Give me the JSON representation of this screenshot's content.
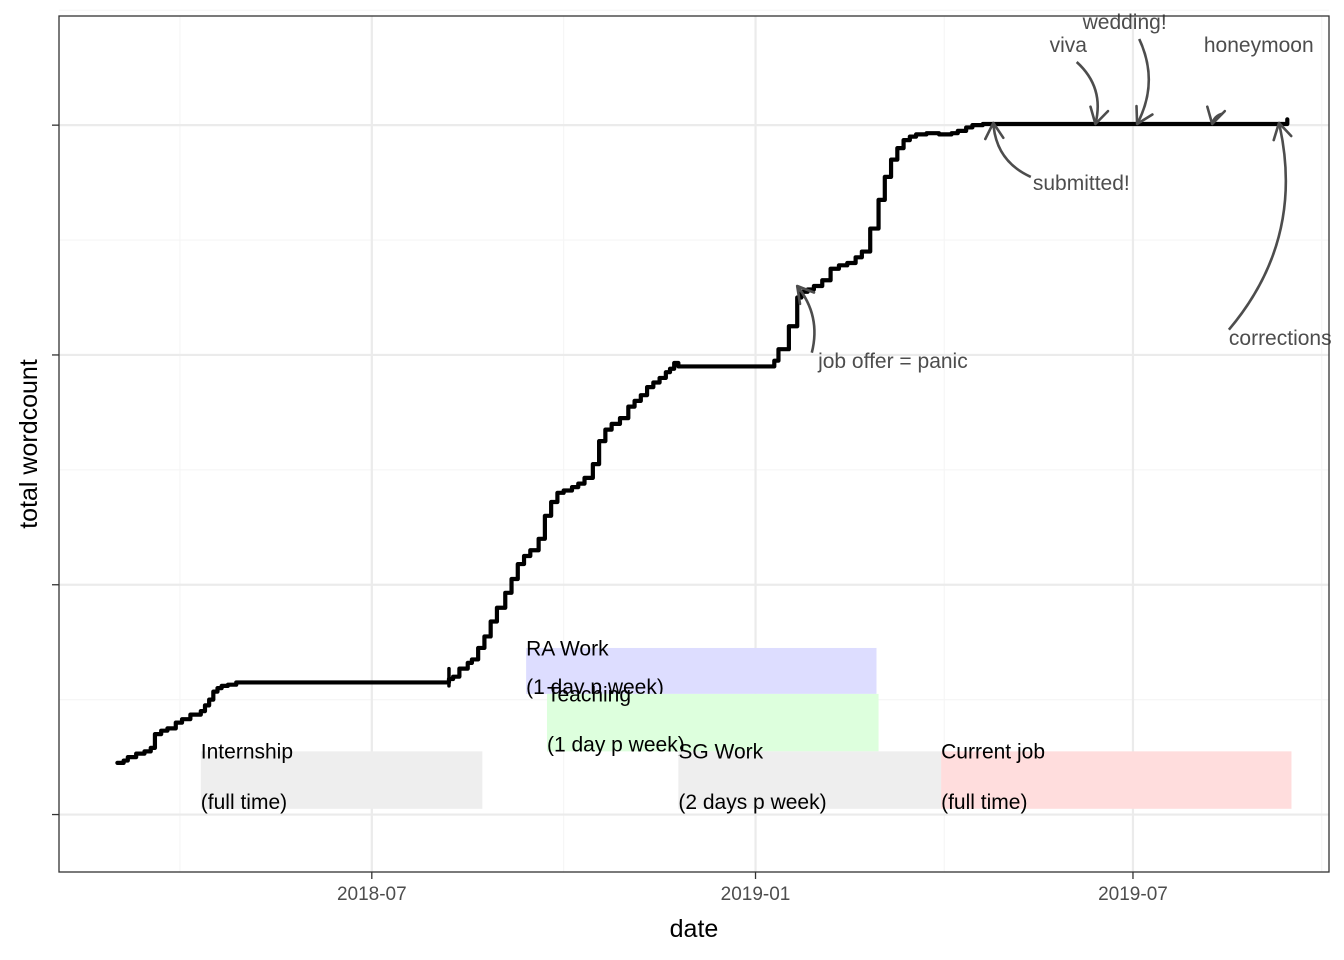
{
  "chart_data": {
    "type": "line",
    "xlabel": "date",
    "ylabel": "total wordcount",
    "xlim": [
      "2018-02-01",
      "2019-10-03"
    ],
    "ylim": [
      -1.5,
      5.95
    ],
    "x_ticks": [
      "2018-07-01",
      "2019-01-01",
      "2019-07-01"
    ],
    "x_tick_labels": [
      "2018-07",
      "2019-01",
      "2019-07"
    ],
    "y_ticks": [
      -1,
      1,
      3,
      5
    ],
    "y_tick_labels": [
      "",
      "",
      "",
      ""
    ],
    "grid": true,
    "colors": {
      "line": "#000000",
      "annotation": "#4d4d4d",
      "grid_major": "#ebebeb",
      "grid_minor": "#f5f5f5",
      "panel_border": "#333333"
    },
    "series": [
      {
        "x": [
          "2018-03-01",
          "2018-03-04",
          "2018-03-06",
          "2018-03-10",
          "2018-03-14",
          "2018-03-17",
          "2018-03-19",
          "2018-03-22",
          "2018-03-25",
          "2018-03-29",
          "2018-04-01",
          "2018-04-05",
          "2018-04-10",
          "2018-04-12",
          "2018-04-14",
          "2018-04-16",
          "2018-04-18",
          "2018-04-20",
          "2018-04-23",
          "2018-04-27",
          "2018-05-02",
          "2018-05-10",
          "2018-05-20",
          "2018-06-10",
          "2018-07-01",
          "2018-07-20",
          "2018-08-04",
          "2018-08-07",
          "2018-08-09",
          "2018-08-12",
          "2018-08-16",
          "2018-08-18",
          "2018-08-21",
          "2018-08-24",
          "2018-08-27",
          "2018-08-30",
          "2018-09-03",
          "2018-09-06",
          "2018-09-09",
          "2018-09-12",
          "2018-09-15",
          "2018-09-19",
          "2018-09-22",
          "2018-09-25",
          "2018-09-28",
          "2018-10-01",
          "2018-10-05",
          "2018-10-08",
          "2018-10-11",
          "2018-10-15",
          "2018-10-18",
          "2018-10-21",
          "2018-10-24",
          "2018-10-28",
          "2018-11-01",
          "2018-11-04",
          "2018-11-07",
          "2018-11-10",
          "2018-11-13",
          "2018-11-16",
          "2018-11-19",
          "2018-11-21",
          "2018-11-23",
          "2018-11-25",
          "2018-11-30",
          "2018-12-05",
          "2018-12-10",
          "2018-12-20",
          "2019-01-10",
          "2019-01-12",
          "2019-01-17",
          "2019-01-21",
          "2019-01-23",
          "2019-01-26",
          "2019-01-29",
          "2019-02-02",
          "2019-02-06",
          "2019-02-10",
          "2019-02-14",
          "2019-02-18",
          "2019-02-21",
          "2019-02-25",
          "2019-03-01",
          "2019-03-04",
          "2019-03-07",
          "2019-03-10",
          "2019-03-13",
          "2019-03-16",
          "2019-03-19",
          "2019-03-24",
          "2019-03-30",
          "2019-04-05",
          "2019-04-08",
          "2019-04-12",
          "2019-04-15",
          "2019-04-20",
          "2019-05-01",
          "2019-06-01",
          "2019-07-01",
          "2019-08-01",
          "2019-09-01",
          "2019-09-09",
          "2019-09-13"
        ],
        "y": [
          -0.55,
          -0.53,
          -0.5,
          -0.47,
          -0.45,
          -0.42,
          -0.3,
          -0.27,
          -0.25,
          -0.2,
          -0.17,
          -0.13,
          -0.1,
          -0.05,
          0,
          0.07,
          0.1,
          0.12,
          0.13,
          0.15,
          0.15,
          0.15,
          0.15,
          0.15,
          0.15,
          0.15,
          0.15,
          0.18,
          0.2,
          0.27,
          0.32,
          0.35,
          0.45,
          0.55,
          0.68,
          0.8,
          0.93,
          1.05,
          1.18,
          1.25,
          1.3,
          1.4,
          1.6,
          1.72,
          1.8,
          1.82,
          1.85,
          1.88,
          1.93,
          2.05,
          2.25,
          2.35,
          2.4,
          2.45,
          2.55,
          2.6,
          2.65,
          2.72,
          2.76,
          2.8,
          2.85,
          2.88,
          2.93,
          2.9,
          2.9,
          2.9,
          2.9,
          2.9,
          2.95,
          3.05,
          3.25,
          3.5,
          3.55,
          3.57,
          3.6,
          3.65,
          3.75,
          3.78,
          3.8,
          3.85,
          3.9,
          4.1,
          4.35,
          4.55,
          4.7,
          4.8,
          4.87,
          4.9,
          4.92,
          4.93,
          4.92,
          4.93,
          4.95,
          4.98,
          5,
          5.01,
          5.01,
          5.01,
          5.01,
          5.01,
          5.01,
          5.01,
          5.05
        ]
      }
    ],
    "spikes": [
      {
        "x": "2018-08-07",
        "y_low": 0.12,
        "y_high": 0.27
      }
    ],
    "periods": [
      {
        "label_line1": "RA Work",
        "label_line2": "(1 day p week)",
        "start": "2018-09-13",
        "end": "2019-02-28",
        "y_low": 0.05,
        "y_high": 0.45,
        "fill": "#ddddff",
        "label_align": "start"
      },
      {
        "label_line1": "Teaching",
        "label_line2": "(1 day p week)",
        "start": "2018-09-23",
        "end": "2019-03-01",
        "y_low": -0.45,
        "y_high": 0.05,
        "fill": "#ddffdd",
        "label_align": "start"
      },
      {
        "label_line1": "Internship",
        "label_line2": "(full time)",
        "start": "2018-04-10",
        "end": "2018-08-23",
        "y_low": -0.95,
        "y_high": -0.45,
        "fill": "#eeeeee",
        "label_align": "start"
      },
      {
        "label_line1": "SG Work",
        "label_line2": "(2 days p week)",
        "start": "2018-11-25",
        "end": "2019-03-31",
        "y_low": -0.95,
        "y_high": -0.45,
        "fill": "#eeeeee",
        "label_align": "start"
      },
      {
        "label_line1": "Current job",
        "label_line2": "(full time)",
        "start": "2019-03-31",
        "end": "2019-09-15",
        "y_low": -0.95,
        "y_high": -0.45,
        "fill": "#ffdddd",
        "label_align": "start"
      }
    ],
    "annotations": [
      {
        "label": "job offer = panic",
        "text_x": "2019-01-31",
        "text_y": 2.95,
        "text_anchor": "start",
        "arrow_from_x": "2019-01-28",
        "arrow_from_y": 3.02,
        "arrow_to_x": "2019-01-21",
        "arrow_to_y": 3.6,
        "curvature": 0.25
      },
      {
        "label": "submitted!",
        "text_x": "2019-05-14",
        "text_y": 4.5,
        "text_anchor": "start",
        "arrow_from_x": "2019-05-13",
        "arrow_from_y": 4.55,
        "arrow_to_x": "2019-04-25",
        "arrow_to_y": 5.02,
        "curvature": -0.3
      },
      {
        "label": "viva",
        "text_x": "2019-05-31",
        "text_y": 5.7,
        "text_anchor": "middle",
        "arrow_from_x": "2019-06-04",
        "arrow_from_y": 5.55,
        "arrow_to_x": "2019-06-13",
        "arrow_to_y": 5.01,
        "curvature": -0.3
      },
      {
        "label": "wedding!",
        "text_x": "2019-06-27",
        "text_y": 5.9,
        "text_anchor": "middle",
        "arrow_from_x": "2019-07-04",
        "arrow_from_y": 5.75,
        "arrow_to_x": "2019-07-03",
        "arrow_to_y": 5.01,
        "curvature": -0.25
      },
      {
        "label": "honeymoon",
        "text_x": "2019-08-04",
        "text_y": 5.7,
        "text_anchor": "start",
        "arrow_from_x": "2019-08-13",
        "arrow_from_y": 5.1,
        "arrow_to_x": "2019-08-08",
        "arrow_to_y": 5.01,
        "curvature": 0.3
      },
      {
        "label": "corrections",
        "text_x": "2019-08-16",
        "text_y": 3.15,
        "text_anchor": "start",
        "arrow_from_x": "2019-08-16",
        "arrow_from_y": 3.22,
        "arrow_to_x": "2019-09-09",
        "arrow_to_y": 5.02,
        "curvature": 0.25
      }
    ]
  }
}
